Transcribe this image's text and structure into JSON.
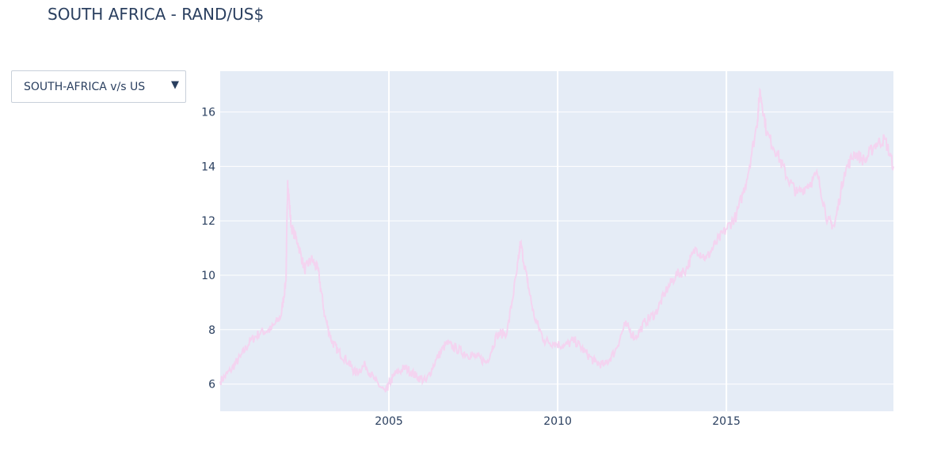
{
  "title": "SOUTH AFRICA - RAND/US$",
  "dropdown": {
    "selected": "SOUTH-AFRICA v/s US",
    "arrow_icon": "triangle-down-icon"
  },
  "chart_data": {
    "type": "line",
    "title": "SOUTH AFRICA - RAND/US$",
    "xlabel": "",
    "ylabel": "",
    "xlim": [
      2000.0,
      2019.95
    ],
    "ylim": [
      5.0,
      17.5
    ],
    "x_ticks": [
      "2005",
      "2010",
      "2015"
    ],
    "y_ticks": [
      "6",
      "8",
      "10",
      "12",
      "14",
      "16"
    ],
    "grid": true,
    "legend": "none",
    "colors": {
      "plot_bg": "#e5ecf6",
      "line": "#f4d4f0",
      "grid": "#ffffff"
    },
    "series": [
      {
        "x": [
          2000.0,
          2000.3,
          2000.6,
          2000.9,
          2001.2,
          2001.5,
          2001.8,
          2001.95,
          2002.0,
          2002.1,
          2002.3,
          2002.5,
          2002.7,
          2002.9,
          2003.1,
          2003.3,
          2003.5,
          2003.8,
          2004.0,
          2004.3,
          2004.6,
          2004.9,
          2005.0,
          2005.2,
          2005.5,
          2005.8,
          2006.1,
          2006.4,
          2006.7,
          2007.0,
          2007.3,
          2007.6,
          2007.9,
          2008.2,
          2008.5,
          2008.8,
          2008.9,
          2009.1,
          2009.3,
          2009.6,
          2009.9,
          2010.2,
          2010.5,
          2010.8,
          2011.1,
          2011.4,
          2011.7,
          2012.0,
          2012.3,
          2012.6,
          2012.9,
          2013.2,
          2013.5,
          2013.8,
          2014.1,
          2014.4,
          2014.7,
          2015.0,
          2015.3,
          2015.6,
          2015.9,
          2016.0,
          2016.2,
          2016.5,
          2016.8,
          2017.1,
          2017.4,
          2017.7,
          2018.0,
          2018.2,
          2018.5,
          2018.8,
          2019.1,
          2019.4,
          2019.7,
          2019.95
        ],
        "y": [
          6.1,
          6.5,
          7.0,
          7.6,
          7.9,
          8.0,
          8.5,
          9.8,
          13.5,
          11.8,
          11.2,
          10.2,
          10.6,
          10.2,
          8.5,
          7.6,
          7.2,
          6.8,
          6.4,
          6.7,
          6.1,
          5.7,
          6.0,
          6.4,
          6.6,
          6.3,
          6.1,
          6.9,
          7.5,
          7.3,
          7.1,
          7.0,
          6.8,
          7.8,
          7.9,
          10.2,
          11.2,
          9.8,
          8.5,
          7.6,
          7.5,
          7.4,
          7.6,
          7.2,
          6.8,
          6.7,
          7.2,
          8.2,
          7.7,
          8.3,
          8.6,
          9.4,
          10.0,
          10.2,
          11.0,
          10.6,
          11.2,
          11.7,
          12.2,
          13.5,
          15.5,
          16.8,
          15.2,
          14.5,
          13.6,
          13.0,
          13.3,
          13.7,
          12.0,
          11.8,
          13.8,
          14.5,
          14.2,
          14.8,
          15.0,
          14.0
        ]
      }
    ]
  }
}
